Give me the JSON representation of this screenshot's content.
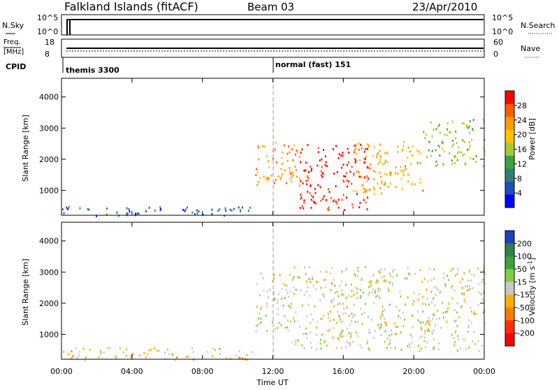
{
  "header": {
    "station": "Falkland Islands (fitACF)",
    "beam": "Beam 03",
    "date": "23/Apr/2010"
  },
  "panels": {
    "nsky_label": "N.Sky",
    "nsky_ticks": [
      "10^5",
      "10^0"
    ],
    "nsearch_label": "N.Search",
    "nsearch_ticks": [
      "10^5",
      "10^0"
    ],
    "freq_label_line1": "Freq.",
    "freq_label_line2": "[MHz]",
    "freq_ticks": [
      "18",
      "8"
    ],
    "nave_label": "Nave",
    "nave_ticks": [
      "60",
      "0"
    ],
    "cpid_label": "CPID",
    "cpid_entries": [
      {
        "text": "themis 3300",
        "start": "00:00"
      },
      {
        "text": "normal (fast) 151",
        "start": "12:00"
      }
    ]
  },
  "x_axis": {
    "label": "Time UT",
    "ticks": [
      "00:00",
      "04:00",
      "08:00",
      "12:00",
      "16:00",
      "20:00",
      "00:00"
    ]
  },
  "power_colorbar": {
    "label": "Power [dB]",
    "ticks": [
      "28",
      "24",
      "20",
      "16",
      "12",
      "8",
      "4"
    ],
    "colors": [
      "#ff0000",
      "#ff5a00",
      "#ff9a00",
      "#ffc300",
      "#a8c838",
      "#3fa03f",
      "#2f7f6f",
      "#1f4fbf",
      "#0000ff"
    ]
  },
  "velocity_colorbar": {
    "label_main": "Velocity [m s",
    "label_sup": "-1",
    "label_end": "]",
    "ticks": [
      "200",
      "100",
      "50",
      "15",
      "-15",
      "-50",
      "-100",
      "-200"
    ],
    "colors": [
      "#1f3fbf",
      "#2f7f4f",
      "#3fa03f",
      "#7fcf3f",
      "#c8c8c8",
      "#ffb000",
      "#ff7a00",
      "#ff3000",
      "#ff0000"
    ]
  },
  "chart_data": [
    {
      "type": "heatmap",
      "title": "",
      "xlabel": "Time UT",
      "ylabel": "Slant Range [km]",
      "x_range": [
        "00:00",
        "24:00"
      ],
      "yticks": [
        1000,
        2000,
        3000,
        4000
      ],
      "ylim": [
        200,
        4600
      ],
      "quantity": "Power [dB]",
      "colorbar_range": [
        0,
        30
      ],
      "bands": [
        {
          "t_start": 11.0,
          "t_end": 13.5,
          "range_low": 1100,
          "range_high": 2600,
          "value": 22
        },
        {
          "t_start": 13.5,
          "t_end": 17.5,
          "range_low": 400,
          "range_high": 2500,
          "value": 28
        },
        {
          "t_start": 16.5,
          "t_end": 20.5,
          "range_low": 900,
          "range_high": 2600,
          "value": 20
        },
        {
          "t_start": 20.5,
          "t_end": 24.0,
          "range_low": 1800,
          "range_high": 3300,
          "value": 14
        },
        {
          "t_start": 0.0,
          "t_end": 11.0,
          "range_low": 200,
          "range_high": 500,
          "value": 6
        }
      ]
    },
    {
      "type": "heatmap",
      "title": "",
      "xlabel": "Time UT",
      "ylabel": "Slant Range [km]",
      "x_range": [
        "00:00",
        "24:00"
      ],
      "yticks": [
        1000,
        2000,
        3000,
        4000
      ],
      "ylim": [
        200,
        4600
      ],
      "quantity": "Velocity [m s-1]",
      "colorbar_range": [
        -250,
        250
      ],
      "bands": [
        {
          "t_start": 11.0,
          "t_end": 13.0,
          "range_low": 1100,
          "range_high": 3000,
          "value": 0
        },
        {
          "t_start": 13.0,
          "t_end": 24.0,
          "range_low": 500,
          "range_high": 3200,
          "value": 0
        },
        {
          "t_start": 0.0,
          "t_end": 11.0,
          "range_low": 200,
          "range_high": 600,
          "value": -40
        }
      ]
    }
  ]
}
